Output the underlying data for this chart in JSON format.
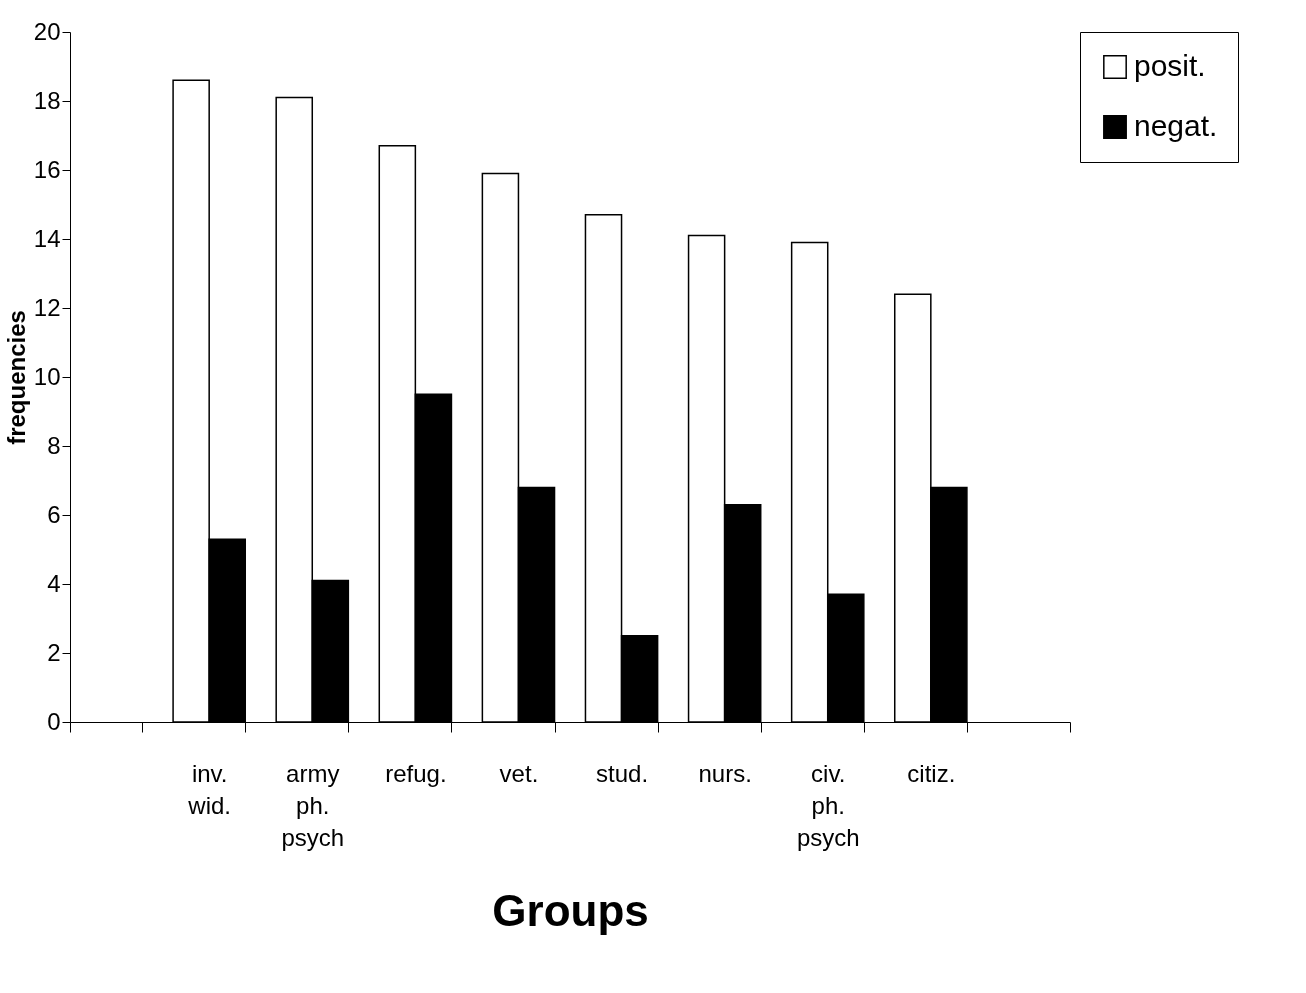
{
  "chart_data": {
    "type": "bar",
    "xlabel": "Groups",
    "ylabel": "frequencies",
    "categories": [
      null,
      "inv. wid.",
      "army ph. psych",
      "refug.",
      "vet.",
      "stud.",
      "nurs.",
      "civ. ph. psych",
      "citiz.",
      null
    ],
    "series": [
      {
        "name": "posit.",
        "color": "#ffffff",
        "values": [
          null,
          18.6,
          18.1,
          16.7,
          15.9,
          14.7,
          14.1,
          13.9,
          12.4,
          null
        ]
      },
      {
        "name": "negat.",
        "color": "#000000",
        "values": [
          null,
          5.3,
          4.1,
          9.5,
          6.8,
          2.5,
          6.3,
          3.7,
          6.8,
          null
        ]
      }
    ],
    "ylim": [
      0,
      20
    ],
    "yticks": [
      0,
      2,
      4,
      6,
      8,
      10,
      12,
      14,
      16,
      18,
      20
    ],
    "grid": false,
    "legend": "top right"
  }
}
